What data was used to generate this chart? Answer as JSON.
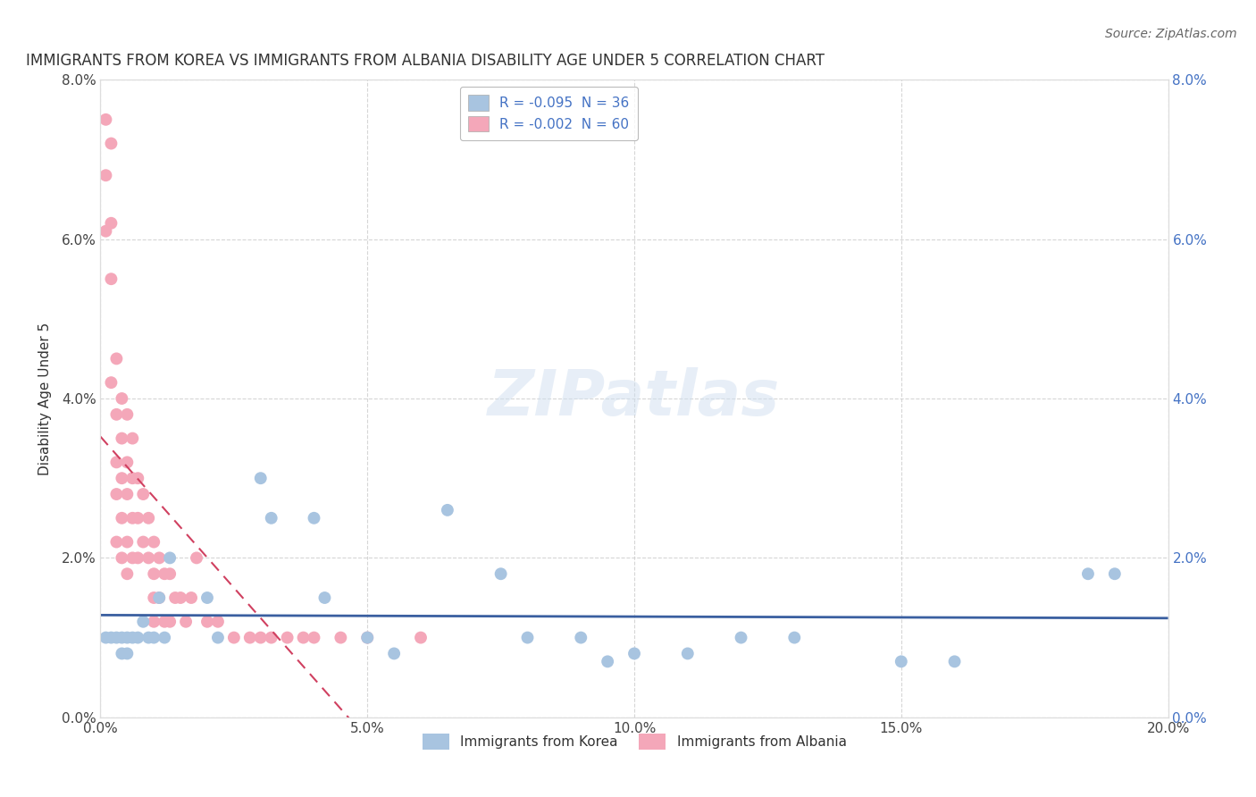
{
  "title": "IMMIGRANTS FROM KOREA VS IMMIGRANTS FROM ALBANIA DISABILITY AGE UNDER 5 CORRELATION CHART",
  "source": "Source: ZipAtlas.com",
  "ylabel": "Disability Age Under 5",
  "xlim": [
    0.0,
    0.2
  ],
  "ylim": [
    0.0,
    0.08
  ],
  "xticks": [
    0.0,
    0.05,
    0.1,
    0.15,
    0.2
  ],
  "yticks": [
    0.0,
    0.02,
    0.04,
    0.06,
    0.08
  ],
  "xtick_labels": [
    "0.0%",
    "5.0%",
    "10.0%",
    "15.0%",
    "20.0%"
  ],
  "ytick_labels": [
    "0.0%",
    "2.0%",
    "4.0%",
    "6.0%",
    "8.0%"
  ],
  "korea_R": -0.095,
  "korea_N": 36,
  "albania_R": -0.002,
  "albania_N": 60,
  "korea_color": "#a8c4e0",
  "albania_color": "#f4a7b9",
  "korea_line_color": "#3a5fa0",
  "albania_line_color": "#d04060",
  "legend_label_korea": "Immigrants from Korea",
  "legend_label_albania": "Immigrants from Albania",
  "korea_x": [
    0.001,
    0.002,
    0.003,
    0.004,
    0.004,
    0.005,
    0.005,
    0.006,
    0.007,
    0.008,
    0.009,
    0.01,
    0.011,
    0.012,
    0.013,
    0.02,
    0.022,
    0.03,
    0.032,
    0.04,
    0.042,
    0.05,
    0.055,
    0.065,
    0.075,
    0.08,
    0.09,
    0.095,
    0.1,
    0.11,
    0.12,
    0.13,
    0.15,
    0.16,
    0.185,
    0.19
  ],
  "korea_y": [
    0.01,
    0.01,
    0.01,
    0.008,
    0.01,
    0.01,
    0.008,
    0.01,
    0.01,
    0.012,
    0.01,
    0.01,
    0.015,
    0.01,
    0.02,
    0.015,
    0.01,
    0.03,
    0.025,
    0.025,
    0.015,
    0.01,
    0.008,
    0.026,
    0.018,
    0.01,
    0.01,
    0.007,
    0.008,
    0.008,
    0.01,
    0.01,
    0.007,
    0.007,
    0.018,
    0.018
  ],
  "albania_x": [
    0.001,
    0.001,
    0.001,
    0.002,
    0.002,
    0.002,
    0.002,
    0.003,
    0.003,
    0.003,
    0.003,
    0.003,
    0.004,
    0.004,
    0.004,
    0.004,
    0.004,
    0.005,
    0.005,
    0.005,
    0.005,
    0.005,
    0.006,
    0.006,
    0.006,
    0.006,
    0.007,
    0.007,
    0.007,
    0.008,
    0.008,
    0.009,
    0.009,
    0.01,
    0.01,
    0.01,
    0.01,
    0.011,
    0.011,
    0.012,
    0.012,
    0.013,
    0.013,
    0.014,
    0.015,
    0.016,
    0.017,
    0.018,
    0.02,
    0.022,
    0.025,
    0.028,
    0.03,
    0.032,
    0.035,
    0.038,
    0.04,
    0.045,
    0.05,
    0.06
  ],
  "albania_y": [
    0.075,
    0.068,
    0.061,
    0.072,
    0.062,
    0.055,
    0.042,
    0.045,
    0.038,
    0.032,
    0.028,
    0.022,
    0.04,
    0.035,
    0.03,
    0.025,
    0.02,
    0.038,
    0.032,
    0.028,
    0.022,
    0.018,
    0.035,
    0.03,
    0.025,
    0.02,
    0.03,
    0.025,
    0.02,
    0.028,
    0.022,
    0.025,
    0.02,
    0.022,
    0.018,
    0.015,
    0.012,
    0.02,
    0.015,
    0.018,
    0.012,
    0.018,
    0.012,
    0.015,
    0.015,
    0.012,
    0.015,
    0.02,
    0.012,
    0.012,
    0.01,
    0.01,
    0.01,
    0.01,
    0.01,
    0.01,
    0.01,
    0.01,
    0.01,
    0.01
  ],
  "background_color": "#ffffff",
  "grid_color": "#cccccc",
  "title_fontsize": 12,
  "axis_label_fontsize": 11,
  "tick_fontsize": 11,
  "legend_fontsize": 11,
  "source_fontsize": 10
}
